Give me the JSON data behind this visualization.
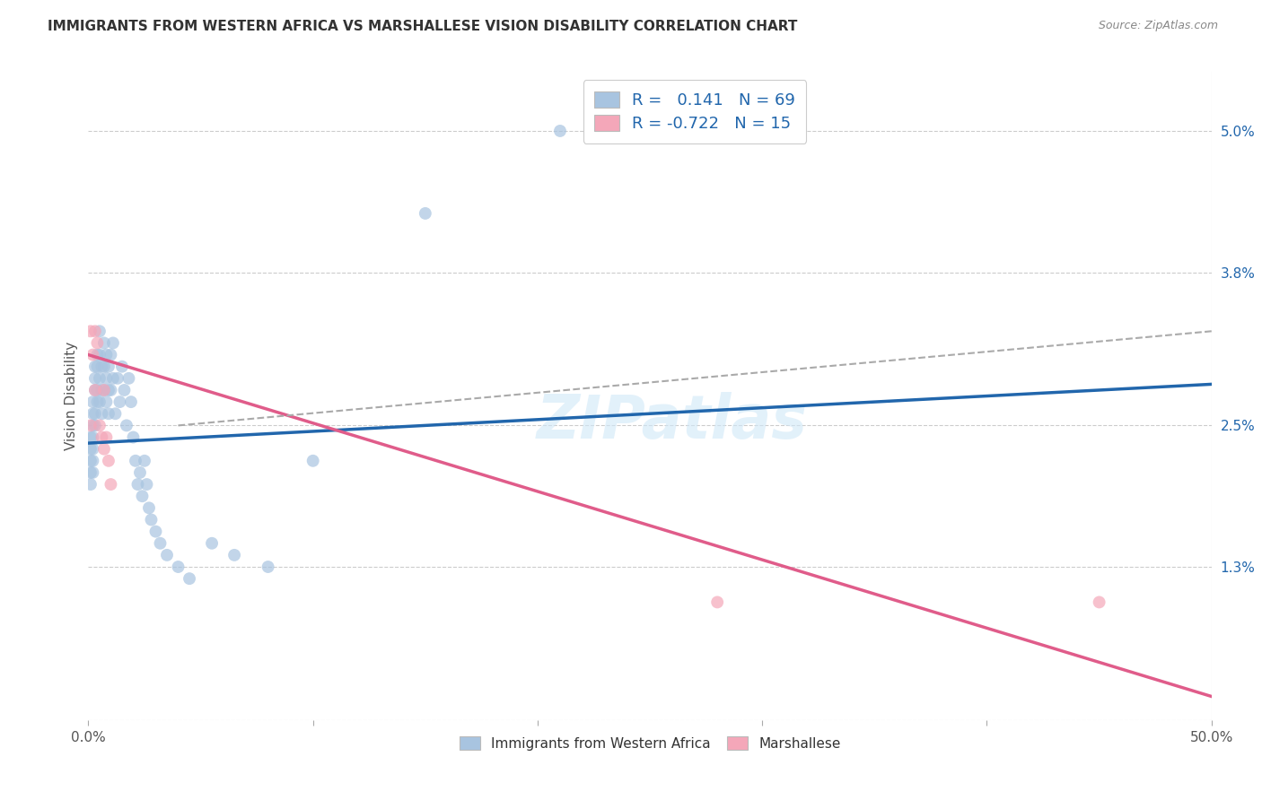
{
  "title": "IMMIGRANTS FROM WESTERN AFRICA VS MARSHALLESE VISION DISABILITY CORRELATION CHART",
  "source": "Source: ZipAtlas.com",
  "ylabel": "Vision Disability",
  "xlim": [
    0.0,
    0.5
  ],
  "ylim": [
    0.0,
    0.055
  ],
  "xticks": [
    0.0,
    0.1,
    0.2,
    0.3,
    0.4,
    0.5
  ],
  "xticklabels": [
    "0.0%",
    "",
    "",
    "",
    "",
    "50.0%"
  ],
  "yticks": [
    0.0,
    0.013,
    0.025,
    0.038,
    0.05
  ],
  "yticklabels": [
    "",
    "1.3%",
    "2.5%",
    "3.8%",
    "5.0%"
  ],
  "blue_R": 0.141,
  "blue_N": 69,
  "pink_R": -0.722,
  "pink_N": 15,
  "blue_color": "#a8c4e0",
  "pink_color": "#f4a7b9",
  "blue_line_color": "#2166ac",
  "pink_line_color": "#e05c8a",
  "dashed_line_color": "#aaaaaa",
  "watermark": "ZIPatlas",
  "legend_label_blue": "Immigrants from Western Africa",
  "legend_label_pink": "Marshallese",
  "blue_line_x0": 0.0,
  "blue_line_y0": 0.0235,
  "blue_line_x1": 0.5,
  "blue_line_y1": 0.0285,
  "pink_line_x0": 0.0,
  "pink_line_y0": 0.031,
  "pink_line_x1": 0.5,
  "pink_line_y1": 0.002,
  "dash_line_x0": 0.04,
  "dash_line_y0": 0.025,
  "dash_line_x1": 0.5,
  "dash_line_y1": 0.033,
  "blue_pts_x": [
    0.001,
    0.001,
    0.001,
    0.001,
    0.001,
    0.002,
    0.002,
    0.002,
    0.002,
    0.002,
    0.002,
    0.002,
    0.003,
    0.003,
    0.003,
    0.003,
    0.003,
    0.004,
    0.004,
    0.004,
    0.004,
    0.005,
    0.005,
    0.005,
    0.005,
    0.006,
    0.006,
    0.006,
    0.007,
    0.007,
    0.007,
    0.008,
    0.008,
    0.008,
    0.009,
    0.009,
    0.009,
    0.01,
    0.01,
    0.011,
    0.011,
    0.012,
    0.013,
    0.014,
    0.015,
    0.016,
    0.017,
    0.018,
    0.019,
    0.02,
    0.021,
    0.022,
    0.023,
    0.024,
    0.025,
    0.026,
    0.027,
    0.028,
    0.03,
    0.032,
    0.035,
    0.04,
    0.045,
    0.055,
    0.065,
    0.08,
    0.1,
    0.15,
    0.21
  ],
  "blue_pts_y": [
    0.024,
    0.022,
    0.023,
    0.021,
    0.02,
    0.025,
    0.027,
    0.026,
    0.024,
    0.023,
    0.022,
    0.021,
    0.03,
    0.029,
    0.028,
    0.026,
    0.025,
    0.031,
    0.03,
    0.028,
    0.027,
    0.033,
    0.031,
    0.029,
    0.027,
    0.03,
    0.028,
    0.026,
    0.032,
    0.03,
    0.028,
    0.031,
    0.029,
    0.027,
    0.03,
    0.028,
    0.026,
    0.031,
    0.028,
    0.032,
    0.029,
    0.026,
    0.029,
    0.027,
    0.03,
    0.028,
    0.025,
    0.029,
    0.027,
    0.024,
    0.022,
    0.02,
    0.021,
    0.019,
    0.022,
    0.02,
    0.018,
    0.017,
    0.016,
    0.015,
    0.014,
    0.013,
    0.012,
    0.015,
    0.014,
    0.013,
    0.022,
    0.043,
    0.05
  ],
  "pink_pts_x": [
    0.001,
    0.001,
    0.002,
    0.003,
    0.003,
    0.004,
    0.005,
    0.006,
    0.007,
    0.007,
    0.008,
    0.009,
    0.01,
    0.28,
    0.45
  ],
  "pink_pts_y": [
    0.033,
    0.025,
    0.031,
    0.033,
    0.028,
    0.032,
    0.025,
    0.024,
    0.028,
    0.023,
    0.024,
    0.022,
    0.02,
    0.01,
    0.01
  ]
}
